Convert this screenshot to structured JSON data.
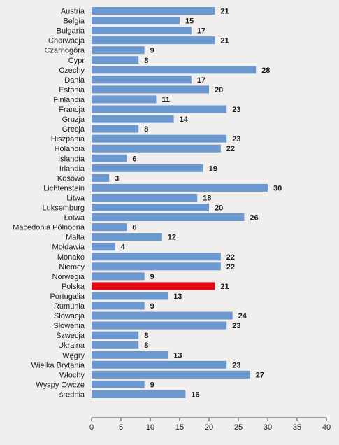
{
  "chart_data": {
    "type": "bar",
    "orientation": "horizontal",
    "title": "",
    "xlabel": "",
    "ylabel": "",
    "xlim": [
      0,
      40
    ],
    "x_ticks": [
      0,
      5,
      10,
      15,
      20,
      25,
      30,
      35,
      40
    ],
    "grid": false,
    "bar_color": "#6a98cf",
    "highlight_color": "#e30613",
    "highlight_category": "Polska",
    "categories": [
      "Austria",
      "Belgia",
      "Bułgaria",
      "Chorwacja",
      "Czarnogóra",
      "Cypr",
      "Czechy",
      "Dania",
      "Estonia",
      "Finlandia",
      "Francja",
      "Gruzja",
      "Grecja",
      "Hiszpania",
      "Holandia",
      "Islandia",
      "Irlandia",
      "Kosowo",
      "Lichtenstein",
      "Litwa",
      "Luksemburg",
      "Łotwa",
      "Macedonia Północna",
      "Malta",
      "Mołdawia",
      "Monako",
      "Niemcy",
      "Norwegia",
      "Polska",
      "Portugalia",
      "Rumunia",
      "Słowacja",
      "Słowenia",
      "Szwecja",
      "Ukraina",
      "Węgry",
      "Wielka Brytania",
      "Włochy",
      "Wyspy Owcze",
      "średnia"
    ],
    "values": [
      21,
      15,
      17,
      21,
      9,
      8,
      28,
      17,
      20,
      11,
      23,
      14,
      8,
      23,
      22,
      6,
      19,
      3,
      30,
      18,
      20,
      26,
      6,
      12,
      4,
      22,
      22,
      9,
      21,
      13,
      9,
      24,
      23,
      8,
      8,
      13,
      23,
      27,
      9,
      16
    ]
  }
}
